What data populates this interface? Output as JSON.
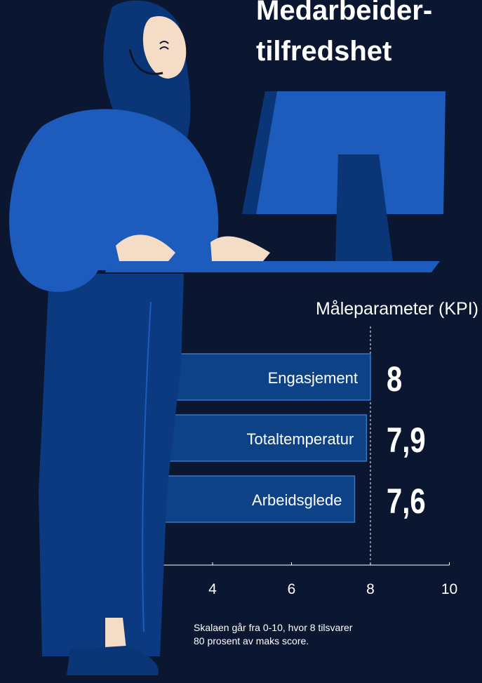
{
  "chart_data": {
    "type": "bar",
    "orientation": "horizontal",
    "title": [
      "Medarbeider-",
      "tilfredshet"
    ],
    "axis_label": "Måleparameter (KPI)",
    "categories": [
      "Engasjement",
      "Totaltemperatur",
      "Arbeidsglede"
    ],
    "values": [
      8,
      7.9,
      7.6
    ],
    "value_labels": [
      "8",
      "7,9",
      "7,6"
    ],
    "color": "#0d4287",
    "xlim": [
      2.5,
      10
    ],
    "xticks": [
      4,
      6,
      8,
      10
    ],
    "reference_line": 8,
    "note": [
      "Skalaen går fra 0-10, hvor 8 tilsvarer",
      "80 prosent av maks score."
    ]
  }
}
